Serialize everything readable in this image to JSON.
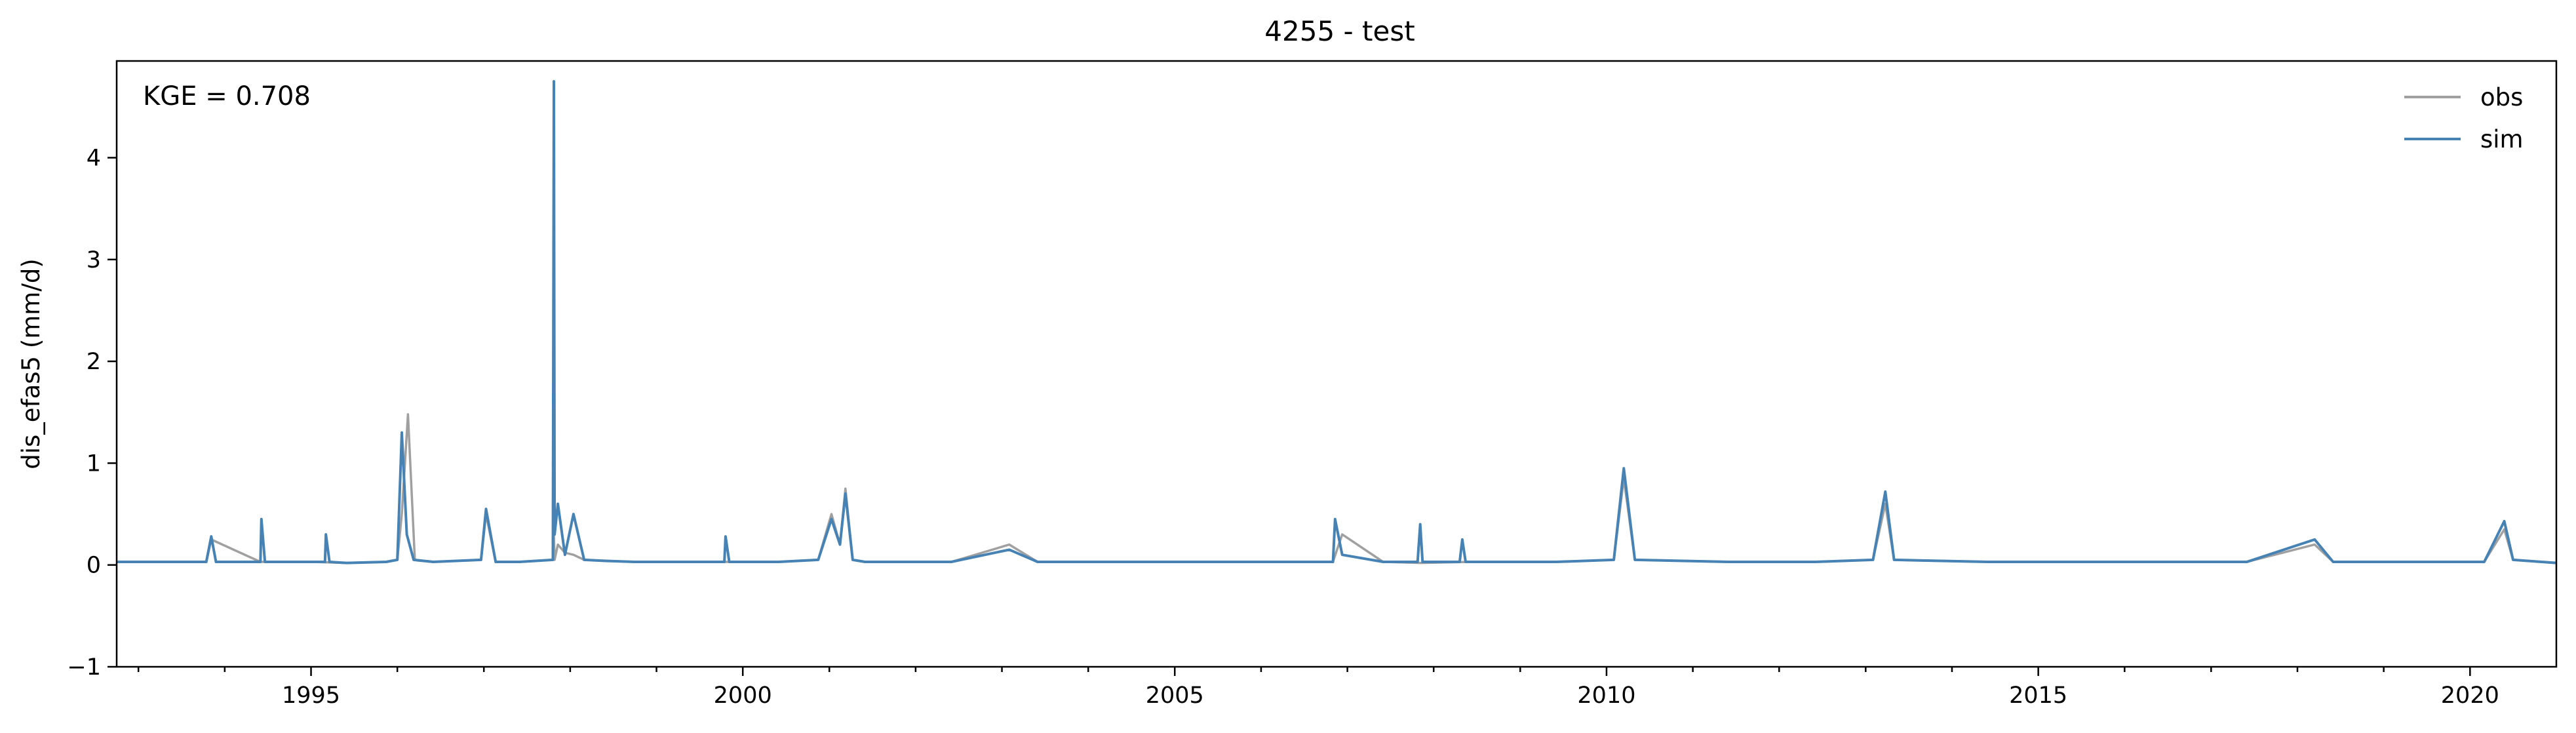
{
  "chart_data": {
    "type": "line",
    "title": "4255 - test",
    "xlabel": "",
    "ylabel": "dis_efas5 (mm/d)",
    "annotation": "KGE = 0.708",
    "xlim": [
      "1992-10-01",
      "2020-12-31"
    ],
    "ylim": [
      -1,
      4.95
    ],
    "x_ticks": [
      "1995",
      "2000",
      "2005",
      "2010",
      "2015",
      "2020"
    ],
    "y_ticks": [
      "−1",
      "0",
      "1",
      "2",
      "3",
      "4"
    ],
    "grid": false,
    "legend_position": "top-right",
    "series": [
      {
        "name": "obs",
        "color": "#a0a0a0",
        "x": [
          "1992-10-01",
          "1993-10-15",
          "1993-11-05",
          "1994-06-01",
          "1995-01-01",
          "1995-06-01",
          "1995-11-15",
          "1996-01-01",
          "1996-01-20",
          "1996-02-15",
          "1996-03-15",
          "1996-06-01",
          "1996-12-20",
          "1997-01-10",
          "1997-02-20",
          "1997-06-01",
          "1997-10-20",
          "1997-10-24",
          "1997-10-27",
          "1997-11-10",
          "1997-12-10",
          "1998-01-15",
          "1998-03-01",
          "1998-06-01",
          "1998-10-01",
          "1999-06-01",
          "1999-10-15",
          "2000-06-01",
          "2000-11-15",
          "2001-01-10",
          "2001-02-15",
          "2001-03-10",
          "2001-04-10",
          "2001-06-01",
          "2002-06-01",
          "2003-02-01",
          "2003-06-01",
          "2004-06-01",
          "2005-06-01",
          "2006-06-01",
          "2006-11-01",
          "2006-12-10",
          "2007-06-01",
          "2007-11-05",
          "2008-06-01",
          "2009-06-01",
          "2010-02-01",
          "2010-03-15",
          "2010-05-01",
          "2011-06-01",
          "2012-06-01",
          "2013-02-01",
          "2013-03-25",
          "2013-05-01",
          "2014-06-01",
          "2015-06-01",
          "2016-06-01",
          "2017-06-01",
          "2018-03-15",
          "2018-06-01",
          "2019-06-01",
          "2020-03-01",
          "2020-05-25",
          "2020-07-01",
          "2020-12-31"
        ],
        "values": [
          0.03,
          0.03,
          0.25,
          0.03,
          0.03,
          0.02,
          0.03,
          0.05,
          0.5,
          1.48,
          0.05,
          0.03,
          0.05,
          0.5,
          0.03,
          0.03,
          0.05,
          0.3,
          0.05,
          0.2,
          0.12,
          0.1,
          0.05,
          0.04,
          0.03,
          0.03,
          0.03,
          0.03,
          0.05,
          0.5,
          0.2,
          0.75,
          0.05,
          0.03,
          0.03,
          0.2,
          0.03,
          0.03,
          0.03,
          0.03,
          0.03,
          0.3,
          0.03,
          0.02,
          0.03,
          0.03,
          0.05,
          0.85,
          0.05,
          0.03,
          0.03,
          0.05,
          0.6,
          0.05,
          0.03,
          0.03,
          0.03,
          0.03,
          0.2,
          0.03,
          0.03,
          0.03,
          0.35,
          0.05,
          0.02
        ]
      },
      {
        "name": "sim",
        "color": "#4682b4",
        "x": [
          "1992-10-01",
          "1993-10-15",
          "1993-11-05",
          "1993-11-25",
          "1994-06-01",
          "1994-06-05",
          "1994-06-20",
          "1995-01-01",
          "1995-03-01",
          "1995-03-05",
          "1995-03-20",
          "1995-06-01",
          "1995-11-15",
          "1996-01-01",
          "1996-01-20",
          "1996-02-10",
          "1996-03-10",
          "1996-06-01",
          "1996-12-20",
          "1997-01-10",
          "1997-02-20",
          "1997-06-01",
          "1997-10-20",
          "1997-10-24",
          "1997-10-27",
          "1997-11-10",
          "1997-12-10",
          "1998-01-15",
          "1998-03-01",
          "1998-06-01",
          "1998-10-01",
          "1999-06-01",
          "1999-10-15",
          "1999-10-20",
          "1999-11-05",
          "2000-06-01",
          "2000-11-15",
          "2001-01-10",
          "2001-02-15",
          "2001-03-10",
          "2001-04-10",
          "2001-06-01",
          "2002-06-01",
          "2003-02-01",
          "2003-06-01",
          "2004-06-01",
          "2005-06-01",
          "2006-06-01",
          "2006-11-01",
          "2006-11-10",
          "2006-12-10",
          "2007-06-01",
          "2007-10-25",
          "2007-11-05",
          "2007-11-15",
          "2008-04-20",
          "2008-05-01",
          "2008-05-15",
          "2009-06-01",
          "2010-02-01",
          "2010-03-15",
          "2010-05-01",
          "2011-06-01",
          "2012-06-01",
          "2013-02-01",
          "2013-03-25",
          "2013-05-01",
          "2014-06-01",
          "2015-06-01",
          "2016-06-01",
          "2017-06-01",
          "2018-03-15",
          "2018-06-01",
          "2019-06-01",
          "2020-03-01",
          "2020-05-25",
          "2020-07-01",
          "2020-12-31"
        ],
        "values": [
          0.03,
          0.03,
          0.28,
          0.03,
          0.03,
          0.45,
          0.03,
          0.03,
          0.03,
          0.3,
          0.03,
          0.02,
          0.03,
          0.05,
          1.3,
          0.3,
          0.05,
          0.03,
          0.05,
          0.55,
          0.03,
          0.03,
          0.05,
          4.75,
          0.3,
          0.6,
          0.1,
          0.5,
          0.05,
          0.04,
          0.03,
          0.03,
          0.03,
          0.28,
          0.03,
          0.03,
          0.05,
          0.45,
          0.2,
          0.7,
          0.05,
          0.03,
          0.03,
          0.15,
          0.03,
          0.03,
          0.03,
          0.03,
          0.03,
          0.45,
          0.1,
          0.03,
          0.03,
          0.4,
          0.03,
          0.03,
          0.25,
          0.03,
          0.03,
          0.05,
          0.95,
          0.05,
          0.03,
          0.03,
          0.05,
          0.72,
          0.05,
          0.03,
          0.03,
          0.03,
          0.03,
          0.25,
          0.03,
          0.03,
          0.03,
          0.43,
          0.05,
          0.02
        ]
      }
    ]
  }
}
